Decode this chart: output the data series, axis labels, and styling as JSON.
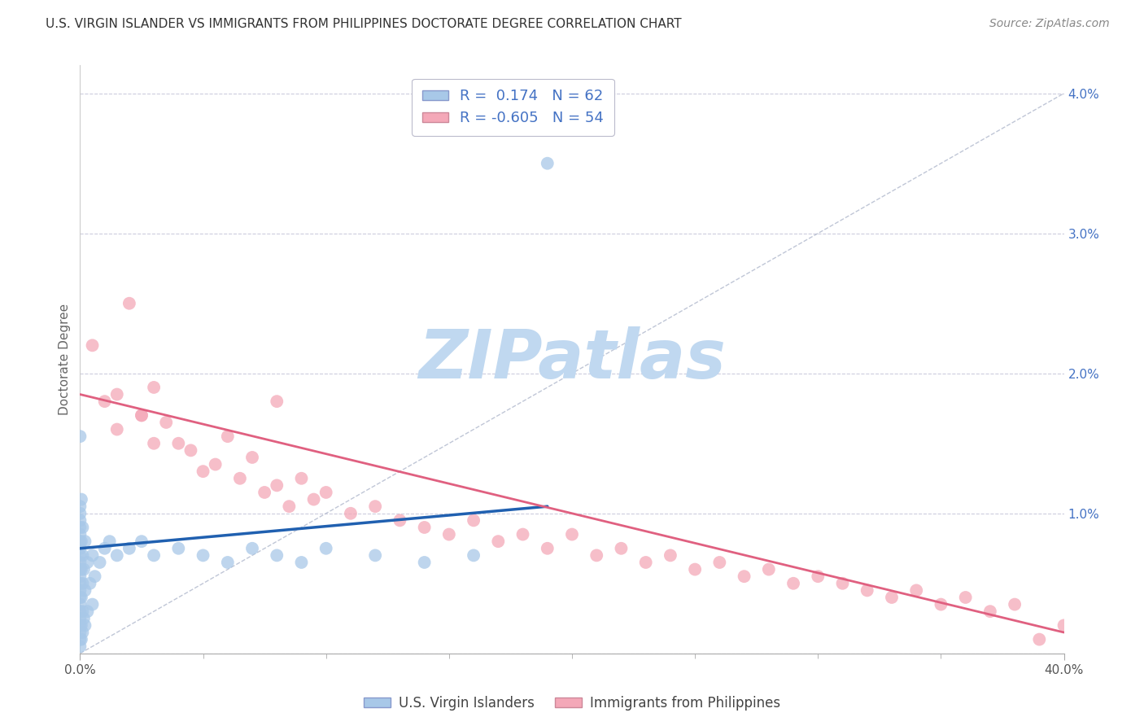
{
  "title": "U.S. VIRGIN ISLANDER VS IMMIGRANTS FROM PHILIPPINES DOCTORATE DEGREE CORRELATION CHART",
  "source": "Source: ZipAtlas.com",
  "ylabel": "Doctorate Degree",
  "xlim": [
    0.0,
    40.0
  ],
  "ylim": [
    0.0,
    4.2
  ],
  "color_blue": "#a8c8e8",
  "color_pink": "#f4a8b8",
  "color_blue_line": "#2060b0",
  "color_pink_line": "#e06080",
  "color_blue_text": "#4472c4",
  "watermark": "ZIPatlas",
  "watermark_color": "#c0d8f0",
  "blue_scatter_x": [
    0.0,
    0.0,
    0.0,
    0.0,
    0.0,
    0.0,
    0.0,
    0.0,
    0.0,
    0.0,
    0.0,
    0.0,
    0.0,
    0.0,
    0.0,
    0.0,
    0.0,
    0.0,
    0.0,
    0.0,
    0.0,
    0.0,
    0.05,
    0.05,
    0.05,
    0.05,
    0.05,
    0.05,
    0.1,
    0.1,
    0.1,
    0.1,
    0.1,
    0.15,
    0.15,
    0.2,
    0.2,
    0.2,
    0.3,
    0.3,
    0.4,
    0.5,
    0.5,
    0.6,
    0.8,
    1.0,
    1.2,
    1.5,
    2.0,
    2.5,
    3.0,
    4.0,
    5.0,
    6.0,
    7.0,
    8.0,
    9.0,
    10.0,
    12.0,
    14.0,
    16.0,
    19.0
  ],
  "blue_scatter_y": [
    0.05,
    0.1,
    0.15,
    0.2,
    0.25,
    0.3,
    0.35,
    0.4,
    0.45,
    0.5,
    0.55,
    0.6,
    0.65,
    0.7,
    0.75,
    0.8,
    0.85,
    0.9,
    0.95,
    1.0,
    1.05,
    1.55,
    0.1,
    0.2,
    0.4,
    0.6,
    0.8,
    1.1,
    0.15,
    0.3,
    0.5,
    0.7,
    0.9,
    0.25,
    0.6,
    0.2,
    0.45,
    0.8,
    0.3,
    0.65,
    0.5,
    0.35,
    0.7,
    0.55,
    0.65,
    0.75,
    0.8,
    0.7,
    0.75,
    0.8,
    0.7,
    0.75,
    0.7,
    0.65,
    0.75,
    0.7,
    0.65,
    0.75,
    0.7,
    0.65,
    0.7,
    3.5
  ],
  "pink_scatter_x": [
    0.5,
    1.0,
    1.5,
    2.0,
    2.5,
    3.0,
    3.5,
    4.0,
    4.5,
    5.0,
    5.5,
    6.0,
    6.5,
    7.0,
    7.5,
    8.0,
    8.5,
    9.0,
    9.5,
    10.0,
    11.0,
    12.0,
    13.0,
    14.0,
    15.0,
    16.0,
    17.0,
    18.0,
    19.0,
    20.0,
    21.0,
    22.0,
    23.0,
    24.0,
    25.0,
    26.0,
    27.0,
    28.0,
    29.0,
    30.0,
    31.0,
    32.0,
    33.0,
    34.0,
    35.0,
    36.0,
    37.0,
    38.0,
    39.0,
    40.0,
    1.5,
    2.5,
    3.0,
    8.0
  ],
  "pink_scatter_y": [
    2.2,
    1.8,
    1.85,
    2.5,
    1.7,
    1.9,
    1.65,
    1.5,
    1.45,
    1.3,
    1.35,
    1.55,
    1.25,
    1.4,
    1.15,
    1.2,
    1.05,
    1.25,
    1.1,
    1.15,
    1.0,
    1.05,
    0.95,
    0.9,
    0.85,
    0.95,
    0.8,
    0.85,
    0.75,
    0.85,
    0.7,
    0.75,
    0.65,
    0.7,
    0.6,
    0.65,
    0.55,
    0.6,
    0.5,
    0.55,
    0.5,
    0.45,
    0.4,
    0.45,
    0.35,
    0.4,
    0.3,
    0.35,
    0.1,
    0.2,
    1.6,
    1.7,
    1.5,
    1.8
  ],
  "blue_trend_x": [
    0.0,
    19.0
  ],
  "blue_trend_y": [
    0.75,
    1.05
  ],
  "pink_trend_x": [
    0.0,
    40.0
  ],
  "pink_trend_y": [
    1.85,
    0.15
  ],
  "diag_line_x": [
    0.0,
    40.0
  ],
  "diag_line_y": [
    0.0,
    4.0
  ]
}
